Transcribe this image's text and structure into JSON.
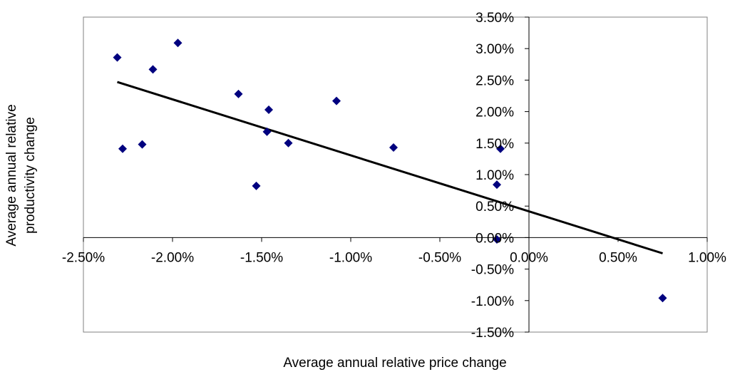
{
  "chart_data": {
    "type": "scatter",
    "title": "",
    "xlabel": "Average annual relative price change",
    "ylabel_lines": [
      "Average annual relative",
      "productivity change"
    ],
    "xlim": [
      -0.025,
      0.01
    ],
    "ylim": [
      -0.015,
      0.035
    ],
    "x_ticks": [
      {
        "value": -0.025,
        "label": "-2.50%"
      },
      {
        "value": -0.02,
        "label": "-2.00%"
      },
      {
        "value": -0.015,
        "label": "-1.50%"
      },
      {
        "value": -0.01,
        "label": "-1.00%"
      },
      {
        "value": -0.005,
        "label": "-0.50%"
      },
      {
        "value": 0.0,
        "label": "0.00%"
      },
      {
        "value": 0.005,
        "label": "0.50%"
      },
      {
        "value": 0.01,
        "label": "1.00%"
      }
    ],
    "y_ticks": [
      {
        "value": 0.035,
        "label": "3.50%"
      },
      {
        "value": 0.03,
        "label": "3.00%"
      },
      {
        "value": 0.025,
        "label": "2.50%"
      },
      {
        "value": 0.02,
        "label": "2.00%"
      },
      {
        "value": 0.015,
        "label": "1.50%"
      },
      {
        "value": 0.01,
        "label": "1.00%"
      },
      {
        "value": 0.005,
        "label": "0.50%"
      },
      {
        "value": 0.0,
        "label": "0.00%"
      },
      {
        "value": -0.005,
        "label": "-0.50%"
      },
      {
        "value": -0.01,
        "label": "-1.00%"
      },
      {
        "value": -0.015,
        "label": "-1.50%"
      }
    ],
    "grid": false,
    "legend": "none",
    "points": [
      {
        "x": -0.0231,
        "y": 0.0286
      },
      {
        "x": -0.0228,
        "y": 0.0141
      },
      {
        "x": -0.0217,
        "y": 0.0148
      },
      {
        "x": -0.0211,
        "y": 0.0267
      },
      {
        "x": -0.0197,
        "y": 0.0309
      },
      {
        "x": -0.0163,
        "y": 0.0228
      },
      {
        "x": -0.0153,
        "y": 0.0082
      },
      {
        "x": -0.0147,
        "y": 0.0168
      },
      {
        "x": -0.0146,
        "y": 0.0203
      },
      {
        "x": -0.0135,
        "y": 0.015
      },
      {
        "x": -0.0108,
        "y": 0.0217
      },
      {
        "x": -0.0076,
        "y": 0.0143
      },
      {
        "x": -0.0018,
        "y": 0.0084
      },
      {
        "x": -0.0018,
        "y": -0.0003
      },
      {
        "x": -0.0016,
        "y": 0.0141
      },
      {
        "x": 0.0075,
        "y": -0.0096
      }
    ],
    "trendline": {
      "x1": -0.0231,
      "y1": 0.0247,
      "x2": 0.0075,
      "y2": -0.0025
    },
    "colors": {
      "marker": "#00007f",
      "trendline": "#000000",
      "frame": "#808080",
      "axis": "#000000"
    }
  }
}
